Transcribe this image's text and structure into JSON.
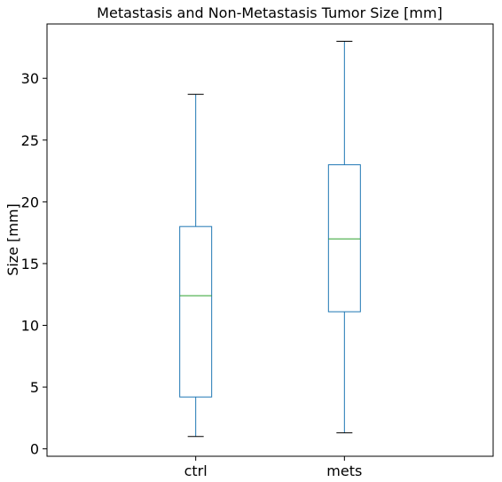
{
  "chart_data": {
    "type": "box",
    "title": "Metastasis and Non-Metastasis Tumor Size [mm]",
    "xlabel": "",
    "ylabel": "Size [mm]",
    "ylim": [
      -0.6,
      34.4
    ],
    "yticks": [
      0,
      5,
      10,
      15,
      20,
      25,
      30
    ],
    "categories": [
      "ctrl",
      "mets"
    ],
    "boxes": [
      {
        "name": "ctrl",
        "whisker_low": 1.0,
        "q1": 4.2,
        "median": 12.4,
        "q3": 18.0,
        "whisker_high": 28.7
      },
      {
        "name": "mets",
        "whisker_low": 1.3,
        "q1": 11.1,
        "median": 17.0,
        "q3": 23.0,
        "whisker_high": 33.0
      }
    ],
    "grid": false,
    "colors": {
      "box": "#1f77b4",
      "median": "#2ca02c",
      "caps": "#000000",
      "frame": "#000000"
    }
  }
}
